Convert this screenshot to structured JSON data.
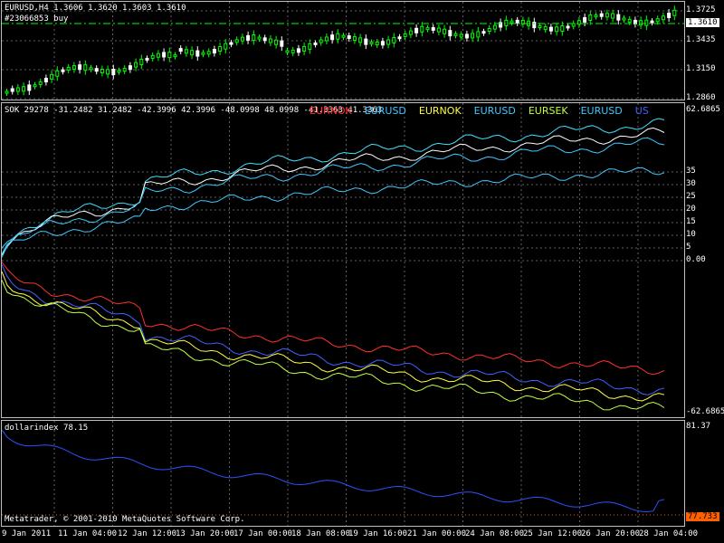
{
  "price_panel": {
    "header": "EURUSD,H4  1.3606 1.3620 1.3603 1.3610",
    "order_label": "#23066853 buy",
    "scale": [
      "1.3725",
      "1.3435",
      "1.3150",
      "1.2860"
    ],
    "current_price": "1.3610",
    "colors": {
      "bull": "#00ff00",
      "bear": "#ffffff",
      "order_line": "#00ff00"
    }
  },
  "indicator_panel": {
    "header": "SOK 29278 -31.2482 31.2482 -42.3996 42.3996 -48.0998 48.0998 -41.3363 41.3363",
    "legend": [
      {
        "text": "EURNOK",
        "color": "#ff3030"
      },
      {
        "text": "EURUSD",
        "color": "#40c8ff"
      },
      {
        "text": "EURNOK",
        "color": "#ffff40"
      },
      {
        "text": "EURUSD",
        "color": "#40c8ff"
      },
      {
        "text": "EURSEK",
        "color": "#c0ff40"
      },
      {
        "text": "EURUSD",
        "color": "#40c8ff"
      },
      {
        "text": "US",
        "color": "#4060ff"
      }
    ],
    "scale_top": "62.6865",
    "scale_bottom": "-62.6865",
    "ticks": [
      "35",
      "30",
      "25",
      "20",
      "15",
      "10",
      "5",
      "0.00"
    ]
  },
  "dollar_panel": {
    "header": "dollarindex 78.15",
    "scale_top": "81.37",
    "current_value": "77.733",
    "copyright": "Metatrader, © 2001-2010 MetaQuotes Software Corp.",
    "line_color": "#3050ff",
    "tag_color": "#ff6000"
  },
  "x_axis": [
    "9 Jan 2011",
    "11 Jan 04:00",
    "12 Jan 12:00",
    "13 Jan 20:00",
    "17 Jan 00:00",
    "18 Jan 08:00",
    "19 Jan 16:00",
    "21 Jan 00:00",
    "24 Jan 08:00",
    "25 Jan 12:00",
    "26 Jan 20:00",
    "28 Jan 04:00"
  ]
}
